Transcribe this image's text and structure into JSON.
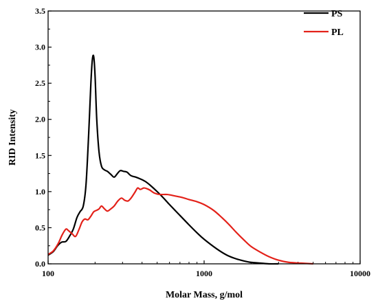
{
  "chart_data": {
    "type": "line",
    "xlabel": "Molar Mass, g/mol",
    "ylabel": "RID Intensity",
    "xscale": "log",
    "xlim": [
      100,
      10000
    ],
    "ylim": [
      0,
      3.5
    ],
    "x_ticks": [
      100,
      1000,
      10000
    ],
    "x_tick_labels": [
      "100",
      "1000",
      "10000"
    ],
    "y_ticks": [
      0.0,
      0.5,
      1.0,
      1.5,
      2.0,
      2.5,
      3.0,
      3.5
    ],
    "y_tick_labels": [
      "0.0",
      "0.5",
      "1.0",
      "1.5",
      "2.0",
      "2.5",
      "3.0",
      "3.5"
    ],
    "legend_position": "top-right",
    "series": [
      {
        "name": "PS",
        "color": "#000000",
        "points": [
          [
            100,
            0.12
          ],
          [
            108,
            0.17
          ],
          [
            115,
            0.25
          ],
          [
            122,
            0.3
          ],
          [
            130,
            0.31
          ],
          [
            137,
            0.38
          ],
          [
            145,
            0.48
          ],
          [
            153,
            0.64
          ],
          [
            160,
            0.72
          ],
          [
            168,
            0.8
          ],
          [
            175,
            1.1
          ],
          [
            182,
            1.8
          ],
          [
            188,
            2.5
          ],
          [
            192,
            2.82
          ],
          [
            196,
            2.87
          ],
          [
            200,
            2.6
          ],
          [
            205,
            2.0
          ],
          [
            212,
            1.55
          ],
          [
            220,
            1.35
          ],
          [
            230,
            1.3
          ],
          [
            240,
            1.28
          ],
          [
            252,
            1.24
          ],
          [
            265,
            1.2
          ],
          [
            278,
            1.25
          ],
          [
            290,
            1.29
          ],
          [
            305,
            1.28
          ],
          [
            320,
            1.27
          ],
          [
            340,
            1.22
          ],
          [
            365,
            1.2
          ],
          [
            395,
            1.17
          ],
          [
            420,
            1.14
          ],
          [
            450,
            1.09
          ],
          [
            500,
            1.0
          ],
          [
            550,
            0.91
          ],
          [
            600,
            0.82
          ],
          [
            700,
            0.67
          ],
          [
            800,
            0.54
          ],
          [
            900,
            0.43
          ],
          [
            1000,
            0.34
          ],
          [
            1200,
            0.21
          ],
          [
            1400,
            0.12
          ],
          [
            1600,
            0.07
          ],
          [
            1800,
            0.04
          ],
          [
            2000,
            0.02
          ],
          [
            2300,
            0.01
          ],
          [
            2600,
            0.0
          ],
          [
            3000,
            0.0
          ]
        ]
      },
      {
        "name": "PL",
        "color": "#e32119",
        "points": [
          [
            100,
            0.13
          ],
          [
            108,
            0.18
          ],
          [
            116,
            0.28
          ],
          [
            123,
            0.4
          ],
          [
            130,
            0.48
          ],
          [
            135,
            0.46
          ],
          [
            142,
            0.42
          ],
          [
            150,
            0.38
          ],
          [
            158,
            0.48
          ],
          [
            165,
            0.58
          ],
          [
            172,
            0.62
          ],
          [
            180,
            0.61
          ],
          [
            188,
            0.66
          ],
          [
            196,
            0.72
          ],
          [
            204,
            0.74
          ],
          [
            212,
            0.76
          ],
          [
            220,
            0.8
          ],
          [
            230,
            0.76
          ],
          [
            240,
            0.73
          ],
          [
            252,
            0.76
          ],
          [
            265,
            0.8
          ],
          [
            280,
            0.87
          ],
          [
            295,
            0.91
          ],
          [
            310,
            0.88
          ],
          [
            325,
            0.87
          ],
          [
            340,
            0.91
          ],
          [
            360,
            0.99
          ],
          [
            375,
            1.05
          ],
          [
            390,
            1.03
          ],
          [
            410,
            1.05
          ],
          [
            430,
            1.04
          ],
          [
            450,
            1.02
          ],
          [
            480,
            0.98
          ],
          [
            520,
            0.96
          ],
          [
            580,
            0.96
          ],
          [
            650,
            0.94
          ],
          [
            720,
            0.92
          ],
          [
            800,
            0.89
          ],
          [
            900,
            0.86
          ],
          [
            1000,
            0.82
          ],
          [
            1150,
            0.74
          ],
          [
            1300,
            0.64
          ],
          [
            1450,
            0.54
          ],
          [
            1600,
            0.44
          ],
          [
            1800,
            0.33
          ],
          [
            2000,
            0.24
          ],
          [
            2300,
            0.16
          ],
          [
            2600,
            0.1
          ],
          [
            3000,
            0.05
          ],
          [
            3500,
            0.02
          ],
          [
            4200,
            0.01
          ],
          [
            5000,
            0.0
          ]
        ]
      }
    ]
  }
}
